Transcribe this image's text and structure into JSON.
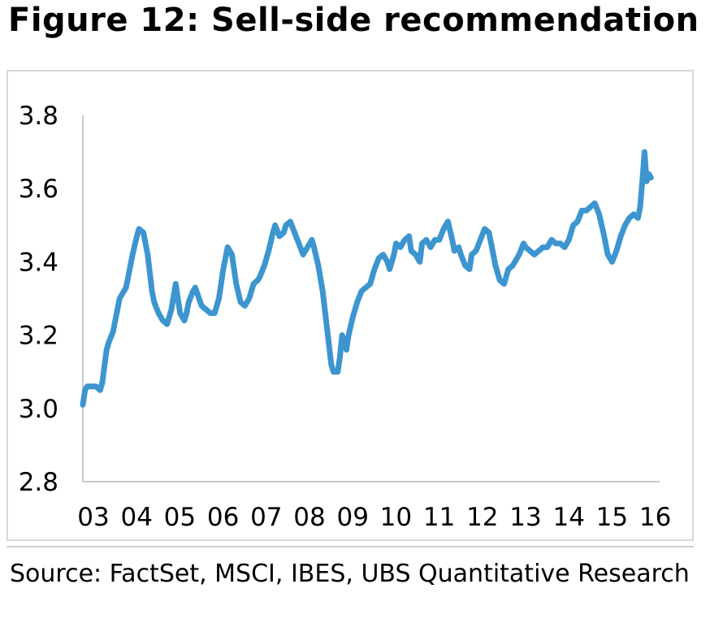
{
  "title": "Figure 12: Sell-side recommendation",
  "source": "Source: FactSet, MSCI, IBES, UBS Quantitative Research",
  "chart_data": {
    "type": "line",
    "title": "Figure 12: Sell-side recommendation",
    "xlabel": "",
    "ylabel": "",
    "x_tick_labels": [
      "03",
      "04",
      "05",
      "06",
      "07",
      "08",
      "09",
      "10",
      "11",
      "12",
      "13",
      "14",
      "15",
      "16"
    ],
    "y_tick_labels": [
      "2.8",
      "3.0",
      "3.2",
      "3.4",
      "3.6",
      "3.8"
    ],
    "y_ticks": [
      2.8,
      3.0,
      3.2,
      3.4,
      3.6,
      3.8
    ],
    "ylim": [
      2.8,
      3.8
    ],
    "xlim": [
      2003.0,
      2016.2
    ],
    "grid": false,
    "legend": "none",
    "line_color": "#3d95cf",
    "series": [
      {
        "x": [
          2003.0,
          2003.05,
          2003.1,
          2003.2,
          2003.3,
          2003.4,
          2003.45,
          2003.55,
          2003.6,
          2003.7,
          2003.75,
          2003.85,
          2004.0,
          2004.1,
          2004.15,
          2004.25,
          2004.3,
          2004.4,
          2004.5,
          2004.6,
          2004.65,
          2004.75,
          2004.85,
          2004.95,
          2005.05,
          2005.15,
          2005.25,
          2005.35,
          2005.4,
          2005.45,
          2005.55,
          2005.6,
          2005.75,
          2005.85,
          2005.95,
          2006.05,
          2006.15,
          2006.25,
          2006.35,
          2006.45,
          2006.55,
          2006.65,
          2006.75,
          2006.85,
          2006.95,
          2007.05,
          2007.1,
          2007.2,
          2007.3,
          2007.4,
          2007.45,
          2007.55,
          2007.65,
          2007.7,
          2007.8,
          2007.9,
          2008.0,
          2008.1,
          2008.2,
          2008.3,
          2008.35,
          2008.45,
          2008.55,
          2008.65,
          2008.75,
          2008.8,
          2008.9,
          2008.95,
          2009.0,
          2009.1,
          2009.15,
          2009.25,
          2009.35,
          2009.45,
          2009.55,
          2009.65,
          2009.75,
          2009.85,
          2009.95,
          2010.05,
          2010.1,
          2010.2,
          2010.25,
          2010.35,
          2010.45,
          2010.55,
          2010.6,
          2010.7,
          2010.8,
          2010.85,
          2010.95,
          2011.05,
          2011.15,
          2011.25,
          2011.35,
          2011.45,
          2011.55,
          2011.6,
          2011.7,
          2011.75,
          2011.85,
          2011.95,
          2012.0,
          2012.1,
          2012.2,
          2012.3,
          2012.4,
          2012.45,
          2012.55,
          2012.65,
          2012.75,
          2012.85,
          2012.95,
          2013.0,
          2013.1,
          2013.2,
          2013.25,
          2013.35,
          2013.45,
          2013.55,
          2013.65,
          2013.75,
          2013.85,
          2013.95,
          2014.05,
          2014.15,
          2014.25,
          2014.35,
          2014.45,
          2014.55,
          2014.65,
          2014.75,
          2014.85,
          2014.95,
          2015.05,
          2015.15,
          2015.25,
          2015.35,
          2015.45,
          2015.55,
          2015.65,
          2015.75,
          2015.85,
          2015.9,
          2015.95,
          2016.0,
          2016.05,
          2016.1,
          2016.15
        ],
        "y": [
          3.01,
          3.05,
          3.06,
          3.06,
          3.06,
          3.05,
          3.07,
          3.16,
          3.18,
          3.21,
          3.24,
          3.3,
          3.33,
          3.39,
          3.42,
          3.47,
          3.49,
          3.48,
          3.42,
          3.32,
          3.29,
          3.26,
          3.24,
          3.23,
          3.27,
          3.34,
          3.26,
          3.24,
          3.26,
          3.29,
          3.32,
          3.33,
          3.28,
          3.27,
          3.26,
          3.26,
          3.3,
          3.38,
          3.44,
          3.42,
          3.34,
          3.29,
          3.28,
          3.3,
          3.34,
          3.35,
          3.36,
          3.39,
          3.43,
          3.48,
          3.5,
          3.47,
          3.48,
          3.5,
          3.51,
          3.48,
          3.45,
          3.42,
          3.44,
          3.46,
          3.44,
          3.39,
          3.32,
          3.22,
          3.12,
          3.1,
          3.1,
          3.14,
          3.2,
          3.16,
          3.2,
          3.25,
          3.29,
          3.32,
          3.33,
          3.34,
          3.38,
          3.41,
          3.42,
          3.4,
          3.38,
          3.42,
          3.45,
          3.44,
          3.46,
          3.47,
          3.43,
          3.42,
          3.4,
          3.45,
          3.46,
          3.44,
          3.46,
          3.46,
          3.49,
          3.51,
          3.46,
          3.43,
          3.44,
          3.42,
          3.39,
          3.38,
          3.42,
          3.43,
          3.46,
          3.49,
          3.48,
          3.45,
          3.39,
          3.35,
          3.34,
          3.38,
          3.39,
          3.4,
          3.42,
          3.45,
          3.44,
          3.43,
          3.42,
          3.43,
          3.44,
          3.44,
          3.46,
          3.45,
          3.45,
          3.44,
          3.46,
          3.5,
          3.51,
          3.54,
          3.54,
          3.55,
          3.56,
          3.53,
          3.48,
          3.42,
          3.4,
          3.43,
          3.47,
          3.5,
          3.52,
          3.53,
          3.52,
          3.55,
          3.62,
          3.7,
          3.62,
          3.64,
          3.63
        ]
      }
    ]
  }
}
